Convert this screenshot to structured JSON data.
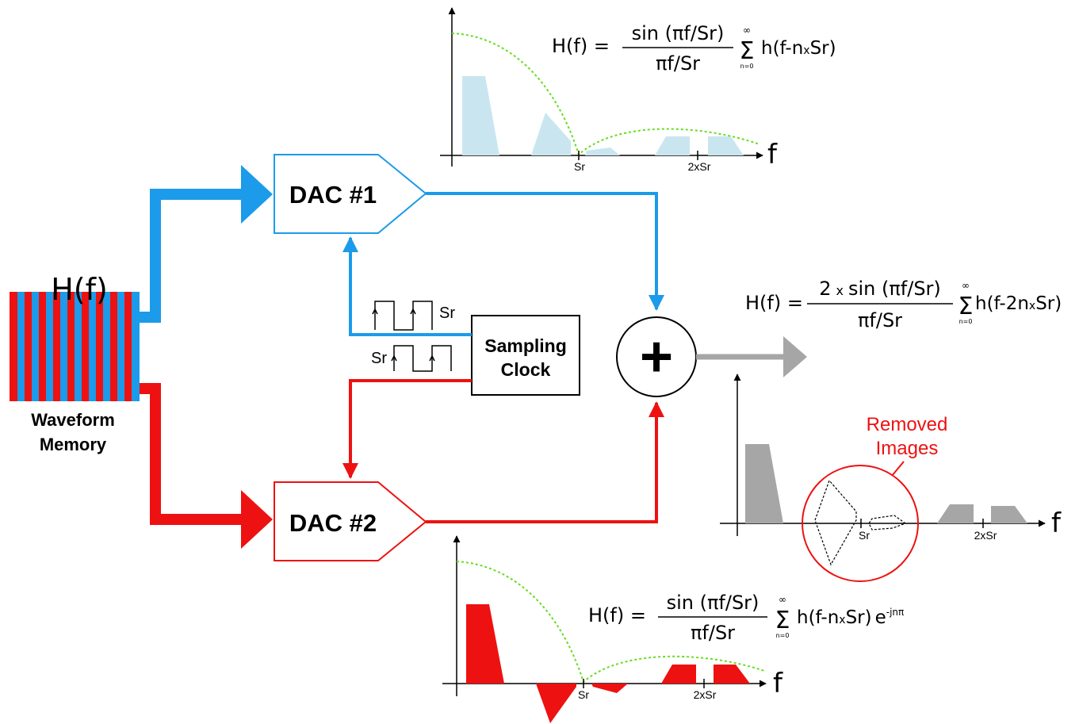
{
  "memory": {
    "label": "H(f)",
    "caption_line1": "Waveform",
    "caption_line2": "Memory",
    "colors": {
      "blue": "#1b9bea",
      "red": "#ee1111"
    }
  },
  "dac1": {
    "label": "DAC #1",
    "color": "#1b9bea"
  },
  "dac2": {
    "label": "DAC #2",
    "color": "#ee1111"
  },
  "clock": {
    "label_line1": "Sampling",
    "label_line2": "Clock",
    "sr_top": "Sr",
    "sr_bottom": "Sr"
  },
  "summer": {
    "symbol": "+",
    "output_color": "#a6a6a6"
  },
  "spectrum_top": {
    "formula": {
      "lhs": "H(f) =",
      "numerator": "sin (πf/Sr)",
      "denominator": "πf/Sr",
      "sum_symbol": "Σ",
      "sum_upper": "∞",
      "sum_lower": "n=0",
      "term": "h(f-n",
      "term_x": "x",
      "term_end": "Sr)"
    },
    "tick_sr": "Sr",
    "tick_2sr": "2xSr",
    "axis_label": "f",
    "fill_color": "#c9e6f0",
    "envelope_color": "#66dd22"
  },
  "spectrum_bottom": {
    "formula": {
      "lhs": "H(f) =",
      "numerator": "sin (πf/Sr)",
      "denominator": "πf/Sr",
      "sum_symbol": "Σ",
      "sum_upper": "∞",
      "sum_lower": "n=0",
      "term": "h(f-n",
      "term_x": "x",
      "term_end": "Sr)",
      "exp_base": "e",
      "exp_power": "-jnπ"
    },
    "tick_sr": "Sr",
    "tick_2sr": "2xSr",
    "axis_label": "f",
    "fill_color": "#ee1111"
  },
  "spectrum_output": {
    "formula": {
      "lhs": "H(f) =",
      "numerator_pre": "2",
      "numerator_x": "x",
      "numerator": "sin (πf/Sr)",
      "denominator": "πf/Sr",
      "sum_symbol": "Σ",
      "sum_upper": "∞",
      "sum_lower": "n=0",
      "term": "h(f-2n",
      "term_x": "x",
      "term_end": "Sr)"
    },
    "removed_line1": "Removed",
    "removed_line2": "Images",
    "tick_sr": "Sr",
    "tick_2sr": "2xSr",
    "axis_label": "f",
    "fill_color": "#a6a6a6"
  }
}
